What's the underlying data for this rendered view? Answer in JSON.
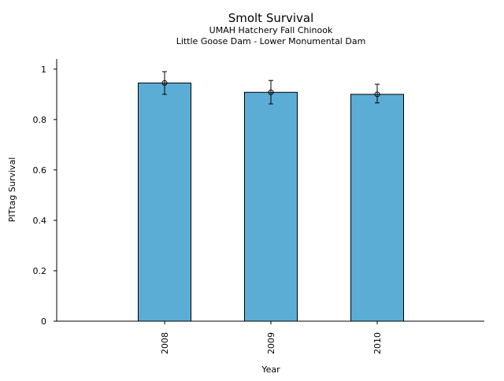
{
  "chart_data": {
    "type": "bar",
    "title": "Smolt Survival",
    "subtitle_lines": [
      "UMAH Hatchery Fall Chinook",
      "Little Goose Dam - Lower Monumental Dam"
    ],
    "xlabel": "Year",
    "ylabel": "PITtag Survival",
    "categories": [
      "2008",
      "2009",
      "2010"
    ],
    "values": [
      0.945,
      0.908,
      0.9
    ],
    "error_low": [
      0.9,
      0.862,
      0.866
    ],
    "error_high": [
      0.99,
      0.955,
      0.94
    ],
    "points": [
      0.945,
      0.908,
      0.9
    ],
    "ylim": [
      0,
      1.04
    ],
    "yticks": [
      "0",
      "0.2",
      "0.4",
      "0.6",
      "0.8",
      "1"
    ],
    "bar_color": "#5BADD6",
    "bar_edge_color": "#000000",
    "grid": false
  }
}
